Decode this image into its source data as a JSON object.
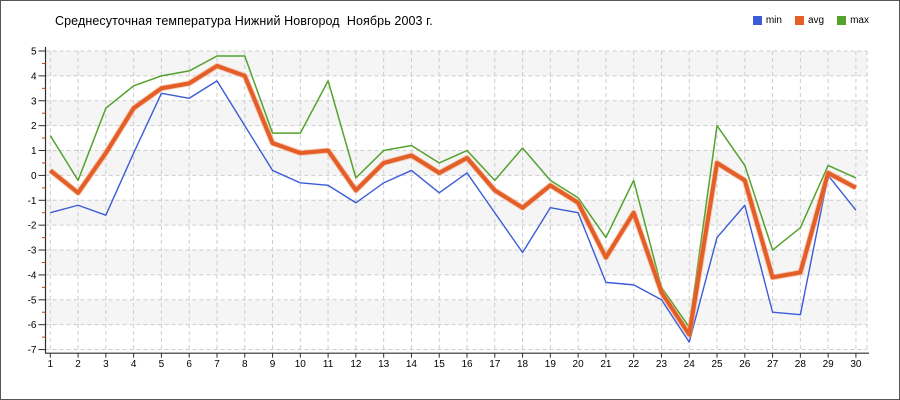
{
  "frame": {
    "border_color": "#565656"
  },
  "chart_data": {
    "type": "line",
    "title": "Среднесуточная температура Нижний Новгород  Ноябрь 2003 г.",
    "xlabel": "",
    "ylabel": "",
    "x": [
      1,
      2,
      3,
      4,
      5,
      6,
      7,
      8,
      9,
      10,
      11,
      12,
      13,
      14,
      15,
      16,
      17,
      18,
      19,
      20,
      21,
      22,
      23,
      24,
      25,
      26,
      27,
      28,
      29,
      30
    ],
    "ylim": [
      -7,
      5
    ],
    "y_ticks": [
      5,
      4,
      3,
      2,
      1,
      0,
      -1,
      -2,
      -3,
      -4,
      -5,
      -6,
      -7
    ],
    "y_minor_tick_interval": 0.5,
    "grid": "dashed",
    "legend_position": "top-right",
    "style": {
      "grid_color": "#cdcdcd",
      "axis_color": "#2e2e2e",
      "band_color": "#f5f5f5",
      "minor_tick_color": "#d9341c",
      "text_color": "#000000",
      "avg_halo_color": "#f2a076"
    },
    "series": [
      {
        "name": "min",
        "color": "#3c5cd7",
        "values": [
          -1.5,
          -1.2,
          -1.6,
          0.9,
          3.3,
          3.1,
          3.8,
          2.0,
          0.2,
          -0.3,
          -0.4,
          -1.1,
          -0.3,
          0.2,
          -0.7,
          0.1,
          -1.5,
          -3.1,
          -1.3,
          -1.5,
          -4.3,
          -4.4,
          -5.0,
          -6.7,
          -2.5,
          -1.2,
          -5.5,
          -5.6,
          0.0,
          -1.4
        ]
      },
      {
        "name": "avg",
        "color": "#e45f28",
        "values": [
          0.2,
          -0.7,
          0.9,
          2.7,
          3.5,
          3.7,
          4.4,
          4.0,
          1.3,
          0.9,
          1.0,
          -0.6,
          0.5,
          0.8,
          0.1,
          0.7,
          -0.6,
          -1.3,
          -0.4,
          -1.1,
          -3.3,
          -1.5,
          -4.7,
          -6.4,
          0.5,
          -0.2,
          -4.1,
          -3.9,
          0.1,
          -0.5
        ]
      },
      {
        "name": "max",
        "color": "#54a22e",
        "values": [
          1.6,
          -0.2,
          2.7,
          3.6,
          4.0,
          4.2,
          4.8,
          4.8,
          1.7,
          1.7,
          3.8,
          -0.1,
          1.0,
          1.2,
          0.5,
          1.0,
          -0.2,
          1.1,
          -0.2,
          -0.9,
          -2.5,
          -0.2,
          -4.5,
          -6.1,
          2.0,
          0.4,
          -3.0,
          -2.1,
          0.4,
          -0.1
        ]
      }
    ]
  }
}
